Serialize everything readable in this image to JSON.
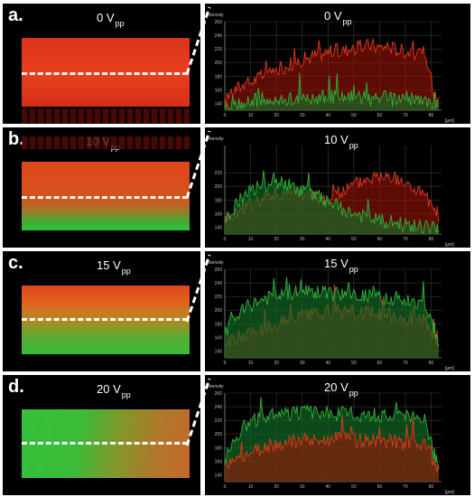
{
  "colors": {
    "red": "#e23a1c",
    "green": "#2fb53a",
    "background": "#000000",
    "dash": "#ffffff"
  },
  "panels": [
    {
      "letter": "a.",
      "voltage_value": "0 V",
      "voltage_sub": "pp",
      "micro": {
        "red_fraction": 1.0,
        "green_fraction": 0.0
      },
      "chart": {
        "ylabel": "Intensity",
        "xunit": "[µm]"
      }
    },
    {
      "letter": "b.",
      "voltage_value": "10 V",
      "voltage_sub": "pp",
      "micro": {
        "red_fraction": 0.8,
        "green_fraction": 0.2
      },
      "chart": {
        "ylabel": "Intensity",
        "xunit": "[µm]"
      }
    },
    {
      "letter": "c.",
      "voltage_value": "15 V",
      "voltage_sub": "pp",
      "micro": {
        "red_fraction": 0.45,
        "green_fraction": 0.55
      },
      "chart": {
        "ylabel": "Intensity",
        "xunit": "[µm]"
      }
    },
    {
      "letter": "d.",
      "voltage_value": "20 V",
      "voltage_sub": "pp",
      "micro": {
        "red_fraction": 0.2,
        "green_fraction": 0.8
      },
      "chart": {
        "ylabel": "Intensity",
        "xunit": "[µm]"
      }
    }
  ],
  "chart_data": [
    {
      "type": "area",
      "panel": "a.",
      "ylabel": "Intensity",
      "xlabel": "[µm]",
      "xlim": [
        0,
        84
      ],
      "ylim": [
        130,
        260
      ],
      "xticks": [
        0,
        10,
        20,
        30,
        40,
        50,
        60,
        70,
        80
      ],
      "yticks": [
        140,
        160,
        180,
        200,
        220,
        240,
        260
      ],
      "x": [
        0,
        3,
        6,
        9,
        12,
        15,
        18,
        21,
        24,
        27,
        30,
        33,
        36,
        39,
        42,
        45,
        48,
        51,
        54,
        57,
        60,
        63,
        66,
        69,
        72,
        75,
        78,
        81,
        83
      ],
      "series": [
        {
          "color": "red",
          "values": [
            142,
            158,
            165,
            170,
            175,
            182,
            186,
            190,
            196,
            200,
            205,
            208,
            212,
            214,
            218,
            216,
            220,
            222,
            224,
            226,
            222,
            225,
            220,
            218,
            216,
            212,
            205,
            160,
            150
          ]
        },
        {
          "color": "green",
          "values": [
            135,
            140,
            138,
            142,
            145,
            140,
            143,
            141,
            146,
            148,
            144,
            150,
            147,
            152,
            149,
            146,
            151,
            148,
            150,
            145,
            149,
            147,
            144,
            150,
            146,
            143,
            142,
            139,
            136
          ]
        }
      ]
    },
    {
      "type": "area",
      "panel": "b.",
      "ylabel": "Intensity",
      "xlabel": "[µm]",
      "xlim": [
        0,
        84
      ],
      "ylim": [
        130,
        260
      ],
      "xticks": [
        0,
        10,
        20,
        30,
        40,
        50,
        60,
        70,
        80
      ],
      "yticks": [
        140,
        160,
        180,
        200,
        220
      ],
      "x": [
        0,
        3,
        6,
        9,
        12,
        15,
        18,
        21,
        24,
        27,
        30,
        33,
        36,
        39,
        42,
        45,
        48,
        51,
        54,
        57,
        60,
        63,
        66,
        69,
        72,
        75,
        78,
        81,
        83
      ],
      "series": [
        {
          "color": "red",
          "values": [
            150,
            158,
            165,
            172,
            178,
            182,
            186,
            190,
            192,
            194,
            190,
            186,
            183,
            182,
            185,
            192,
            198,
            205,
            210,
            214,
            216,
            214,
            211,
            206,
            200,
            194,
            186,
            160,
            148
          ]
        },
        {
          "color": "green",
          "values": [
            150,
            165,
            180,
            188,
            195,
            200,
            203,
            205,
            202,
            198,
            195,
            190,
            185,
            180,
            174,
            168,
            162,
            158,
            155,
            152,
            150,
            148,
            146,
            144,
            142,
            140,
            139,
            137,
            135
          ]
        }
      ]
    },
    {
      "type": "area",
      "panel": "c.",
      "ylabel": "Intensity",
      "xlabel": "[µm]",
      "xlim": [
        0,
        84
      ],
      "ylim": [
        130,
        260
      ],
      "xticks": [
        0,
        10,
        20,
        30,
        40,
        50,
        60,
        70,
        80
      ],
      "yticks": [
        140,
        160,
        180,
        200,
        220,
        240,
        260
      ],
      "x": [
        0,
        3,
        6,
        9,
        12,
        15,
        18,
        21,
        24,
        27,
        30,
        33,
        36,
        39,
        42,
        45,
        48,
        51,
        54,
        57,
        60,
        63,
        66,
        69,
        72,
        75,
        78,
        81,
        83
      ],
      "series": [
        {
          "color": "red",
          "values": [
            150,
            156,
            162,
            166,
            170,
            174,
            178,
            182,
            186,
            188,
            190,
            192,
            194,
            196,
            197,
            198,
            198,
            197,
            196,
            196,
            195,
            194,
            192,
            190,
            188,
            186,
            184,
            156,
            146
          ]
        },
        {
          "color": "green",
          "values": [
            162,
            184,
            196,
            205,
            212,
            216,
            220,
            222,
            224,
            226,
            226,
            227,
            226,
            225,
            224,
            223,
            222,
            222,
            221,
            221,
            220,
            219,
            218,
            216,
            214,
            212,
            208,
            168,
            150
          ]
        }
      ]
    },
    {
      "type": "area",
      "panel": "d.",
      "ylabel": "Intensity",
      "xlabel": "[µm]",
      "xlim": [
        0,
        84
      ],
      "ylim": [
        130,
        260
      ],
      "xticks": [
        0,
        10,
        20,
        30,
        40,
        50,
        60,
        70,
        80
      ],
      "yticks": [
        140,
        160,
        180,
        200,
        220,
        240,
        260
      ],
      "x": [
        0,
        3,
        6,
        9,
        12,
        15,
        18,
        21,
        24,
        27,
        30,
        33,
        36,
        39,
        42,
        45,
        48,
        51,
        54,
        57,
        60,
        63,
        66,
        69,
        72,
        75,
        78,
        81,
        83
      ],
      "series": [
        {
          "color": "green",
          "values": [
            162,
            186,
            205,
            216,
            222,
            226,
            228,
            230,
            230,
            231,
            232,
            232,
            231,
            231,
            230,
            230,
            230,
            229,
            229,
            228,
            228,
            227,
            226,
            225,
            224,
            222,
            218,
            172,
            152
          ]
        },
        {
          "color": "red",
          "values": [
            150,
            158,
            166,
            172,
            176,
            180,
            184,
            186,
            188,
            189,
            190,
            190,
            191,
            191,
            192,
            192,
            192,
            191,
            191,
            190,
            190,
            189,
            188,
            187,
            186,
            185,
            183,
            158,
            148
          ]
        }
      ]
    }
  ]
}
